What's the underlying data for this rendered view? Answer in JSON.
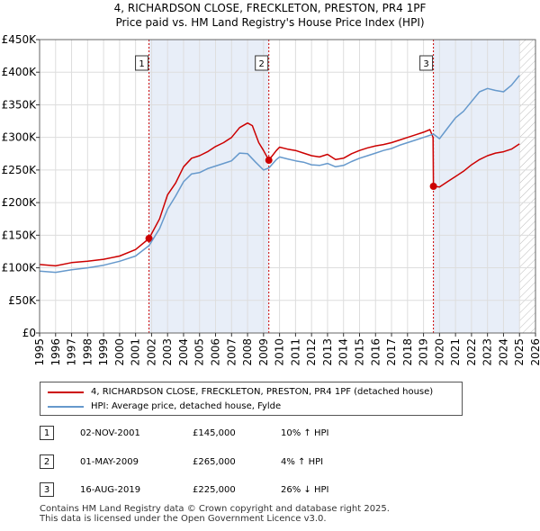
{
  "title_line1": "4, RICHARDSON CLOSE, FRECKLETON, PRESTON, PR4 1PF",
  "title_line2": "Price paid vs. HM Land Registry's House Price Index (HPI)",
  "colors": {
    "property": "#cc0000",
    "hpi": "#6699cc",
    "grid": "#dddddd",
    "shade": "#e8eef8",
    "marker_line": "#cc0000"
  },
  "chart_data": {
    "type": "line",
    "title": "Price paid vs. HM Land Registry's House Price Index (HPI)",
    "xlabel": "",
    "ylabel": "",
    "xlim": [
      1995,
      2026
    ],
    "ylim": [
      0,
      450000
    ],
    "y_ticks": [
      0,
      50000,
      100000,
      150000,
      200000,
      250000,
      300000,
      350000,
      400000,
      450000
    ],
    "y_tick_labels": [
      "£0",
      "£50K",
      "£100K",
      "£150K",
      "£200K",
      "£250K",
      "£300K",
      "£350K",
      "£400K",
      "£450K"
    ],
    "x_ticks": [
      1995,
      1996,
      1997,
      1998,
      1999,
      2000,
      2001,
      2002,
      2003,
      2004,
      2005,
      2006,
      2007,
      2008,
      2009,
      2010,
      2011,
      2012,
      2013,
      2014,
      2015,
      2016,
      2017,
      2018,
      2019,
      2020,
      2021,
      2022,
      2023,
      2024,
      2025,
      2026
    ],
    "x_tick_labels": [
      "1995",
      "1996",
      "1997",
      "1998",
      "1999",
      "2000",
      "2001",
      "2002",
      "2003",
      "2004",
      "2005",
      "2006",
      "2007",
      "2008",
      "2009",
      "2010",
      "2011",
      "2012",
      "2013",
      "2014",
      "2015",
      "2016",
      "2017",
      "2018",
      "2019",
      "2020",
      "2021",
      "2022",
      "2023",
      "2024",
      "2025",
      "2026"
    ],
    "grid": true,
    "shaded_ranges": [
      [
        2001.84,
        2009.33
      ],
      [
        2019.62,
        2025.0
      ]
    ],
    "hatched_range": [
      2025.0,
      2026
    ],
    "series": [
      {
        "name": "4, RICHARDSON CLOSE, FRECKLETON, PRESTON, PR4 1PF (detached house)",
        "color": "#cc0000",
        "x": [
          1995,
          1996,
          1997,
          1998,
          1999,
          2000,
          2001,
          2001.84,
          2002.5,
          2003,
          2003.5,
          2004,
          2004.5,
          2005,
          2005.5,
          2006,
          2006.5,
          2007,
          2007.5,
          2008,
          2008.3,
          2008.7,
          2009,
          2009.33,
          2009.8,
          2010,
          2010.5,
          2011,
          2011.5,
          2012,
          2012.5,
          2013,
          2013.5,
          2014,
          2014.5,
          2015,
          2015.5,
          2016,
          2016.5,
          2017,
          2017.5,
          2018,
          2018.5,
          2019,
          2019.4,
          2019.6,
          2019.62,
          2020,
          2020.5,
          2021,
          2021.5,
          2022,
          2022.5,
          2023,
          2023.5,
          2024,
          2024.5,
          2025.0
        ],
        "values": [
          105000,
          103000,
          108000,
          110000,
          113000,
          118000,
          128000,
          145000,
          175000,
          212000,
          230000,
          255000,
          268000,
          272000,
          278000,
          286000,
          292000,
          300000,
          315000,
          322000,
          318000,
          292000,
          280000,
          265000,
          280000,
          285000,
          282000,
          280000,
          276000,
          272000,
          270000,
          274000,
          266000,
          268000,
          275000,
          280000,
          284000,
          287000,
          289000,
          292000,
          296000,
          300000,
          304000,
          308000,
          312000,
          300000,
          225000,
          224000,
          232000,
          240000,
          248000,
          258000,
          266000,
          272000,
          276000,
          278000,
          282000,
          290000
        ],
        "markers": [
          [
            2001.84,
            145000
          ],
          [
            2009.33,
            265000
          ],
          [
            2019.62,
            225000
          ]
        ]
      },
      {
        "name": "HPI: Average price, detached house, Fylde",
        "color": "#6699cc",
        "x": [
          1995,
          1996,
          1997,
          1998,
          1999,
          2000,
          2001,
          2001.84,
          2002.5,
          2003,
          2003.5,
          2004,
          2004.5,
          2005,
          2005.5,
          2006,
          2006.5,
          2007,
          2007.5,
          2008,
          2008.5,
          2009,
          2009.33,
          2009.8,
          2010,
          2010.5,
          2011,
          2011.5,
          2012,
          2012.5,
          2013,
          2013.5,
          2014,
          2014.5,
          2015,
          2015.5,
          2016,
          2016.5,
          2017,
          2017.5,
          2018,
          2018.5,
          2019,
          2019.62,
          2020,
          2020.5,
          2021,
          2021.5,
          2022,
          2022.5,
          2023,
          2023.5,
          2024,
          2024.5,
          2025.0
        ],
        "values": [
          95000,
          93000,
          97000,
          100000,
          104000,
          110000,
          118000,
          134000,
          160000,
          190000,
          210000,
          232000,
          244000,
          246000,
          252000,
          256000,
          260000,
          264000,
          276000,
          275000,
          262000,
          250000,
          253000,
          266000,
          270000,
          267000,
          264000,
          262000,
          258000,
          257000,
          260000,
          255000,
          257000,
          263000,
          268000,
          272000,
          276000,
          280000,
          283000,
          288000,
          292000,
          296000,
          300000,
          305000,
          298000,
          314000,
          330000,
          340000,
          355000,
          370000,
          375000,
          372000,
          370000,
          380000,
          395000
        ]
      }
    ],
    "annotations": [
      {
        "label": "1",
        "x": 2001.84
      },
      {
        "label": "2",
        "x": 2009.33
      },
      {
        "label": "3",
        "x": 2019.62
      }
    ]
  },
  "legend": {
    "property_label": "4, RICHARDSON CLOSE, FRECKLETON, PRESTON, PR4 1PF (detached house)",
    "hpi_label": "HPI: Average price, detached house, Fylde"
  },
  "transactions": [
    {
      "num": "1",
      "date": "02-NOV-2001",
      "price": "£145,000",
      "hpi": "10% ↑ HPI"
    },
    {
      "num": "2",
      "date": "01-MAY-2009",
      "price": "£265,000",
      "hpi": "4% ↑ HPI"
    },
    {
      "num": "3",
      "date": "16-AUG-2019",
      "price": "£225,000",
      "hpi": "26% ↓ HPI"
    }
  ],
  "footer_line1": "Contains HM Land Registry data © Crown copyright and database right 2025.",
  "footer_line2": "This data is licensed under the Open Government Licence v3.0."
}
